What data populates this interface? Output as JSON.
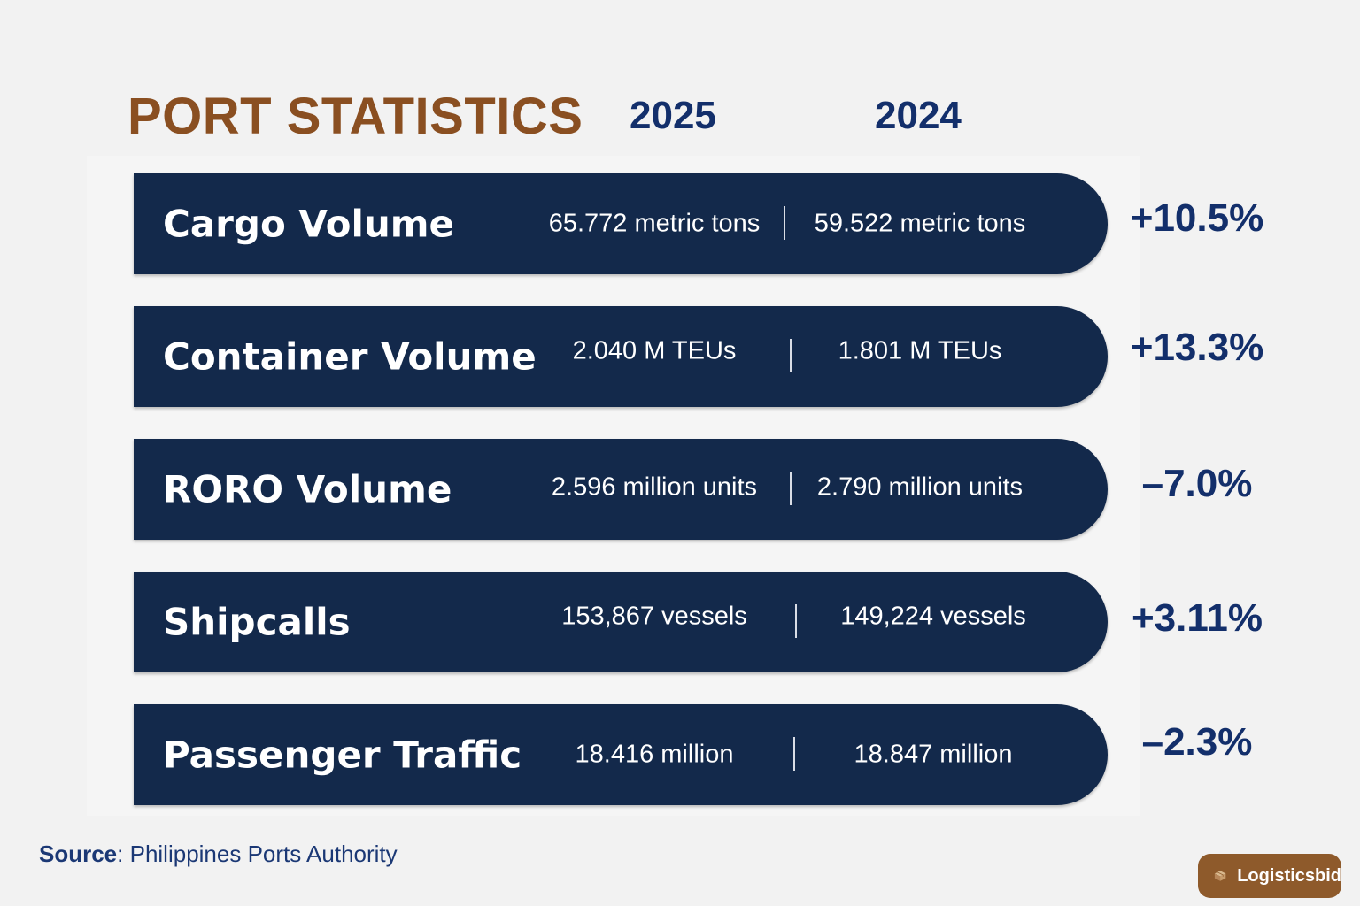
{
  "header": {
    "title": "PORT STATISTICS",
    "year_current": "2025",
    "year_previous": "2024"
  },
  "rows": [
    {
      "label": "Cargo Volume",
      "value_2025": "65.772 metric tons",
      "value_2024": "59.522 metric tons",
      "change": "+10.5%"
    },
    {
      "label": "Container Volume",
      "value_2025": "2.040 M TEUs",
      "value_2024": "1.801 M TEUs",
      "change": "+13.3%"
    },
    {
      "label": "RORO Volume",
      "value_2025": "2.596 million units",
      "value_2024": "2.790 million units",
      "change": "–7.0%"
    },
    {
      "label": "Shipcalls",
      "value_2025": "153,867 vessels",
      "value_2024": "149,224 vessels",
      "change": "+3.11%"
    },
    {
      "label": "Passenger Traffic",
      "value_2025": "18.416 million",
      "value_2024": "18.847 million",
      "change": "–2.3%"
    }
  ],
  "footer": {
    "source_label": "Source",
    "source_text": ": Philippines Ports Authority"
  },
  "brand": {
    "name": "Logisticsbid",
    "icon": "box-icon"
  },
  "colors": {
    "title": "#8a4f21",
    "bar": "#13294b",
    "accent_text": "#132f6b",
    "brand_badge": "#8e5a2b"
  }
}
